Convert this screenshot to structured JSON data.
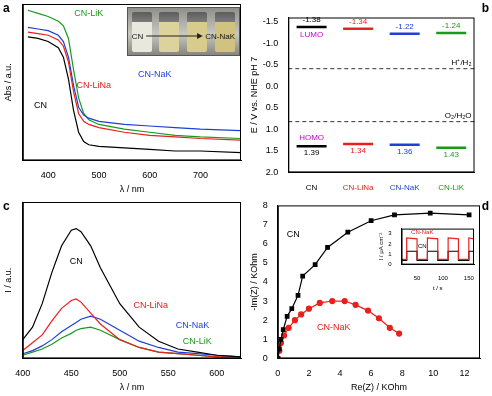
{
  "chart_data": [
    {
      "type": "line",
      "panel": "a",
      "x_label": "λ / nm",
      "y_label": "Abs / a.u.",
      "xlim": [
        350,
        780
      ],
      "xticks": [
        400,
        500,
        600,
        700
      ],
      "ylim": [
        0,
        100
      ],
      "tick_labels": "x",
      "x": [
        360,
        380,
        400,
        420,
        430,
        440,
        450,
        460,
        470,
        480,
        500,
        550,
        600,
        650,
        700,
        780
      ],
      "series": [
        {
          "name": "CN",
          "color": "#000000",
          "values": [
            79,
            78,
            76,
            72,
            66,
            52,
            32,
            18,
            12,
            10,
            9,
            8,
            7,
            6,
            6,
            5
          ]
        },
        {
          "name": "CN-LiNa",
          "color": "#e8201e",
          "values": [
            82,
            81,
            80,
            77,
            73,
            63,
            44,
            30,
            25,
            23,
            21,
            18,
            16,
            15,
            14,
            13
          ]
        },
        {
          "name": "CN-NaK",
          "color": "#1f3fd6",
          "values": [
            85,
            84,
            83,
            80,
            76,
            66,
            48,
            34,
            29,
            27,
            25,
            23,
            22,
            21,
            20,
            19
          ]
        },
        {
          "name": "CN-LiK",
          "color": "#1a9a1a",
          "values": [
            96,
            94,
            92,
            89,
            86,
            78,
            58,
            40,
            30,
            26,
            23,
            20,
            18,
            16,
            15,
            14
          ]
        }
      ],
      "inset_photo": {
        "labels": [
          "CN",
          "CN-NaK"
        ]
      }
    },
    {
      "type": "energy_levels",
      "panel": "b",
      "y_label": "E / V vs. NHE pH 7",
      "categories": [
        "CN",
        "CN-LiNa",
        "CN-NaK",
        "CN-LiK"
      ],
      "colors": [
        "#000000",
        "#e8201e",
        "#1f3fd6",
        "#1a9a1a"
      ],
      "ylim": [
        2.0,
        -1.6
      ],
      "yticks": [
        -1.5,
        {
          "value": -1,
          "label": "-1.0"
        },
        -0.5,
        {
          "value": 0,
          "label": "0.0"
        },
        0.5,
        {
          "value": 1,
          "label": "1.0"
        },
        1.5,
        {
          "value": 2,
          "label": "2.0"
        }
      ],
      "series": [
        {
          "name": "LUMO",
          "color": "#cc00cc",
          "values": [
            -1.38,
            -1.34,
            -1.22,
            -1.24
          ]
        },
        {
          "name": "HOMO",
          "color": "#cc00cc",
          "values": [
            1.39,
            1.34,
            1.36,
            1.43
          ]
        }
      ],
      "reference_lines": [
        {
          "label": "H⁺/H₂",
          "value": -0.41
        },
        {
          "label": "O₂/H₂O",
          "value": 0.82
        }
      ],
      "data_labels": true
    },
    {
      "type": "line",
      "panel": "c",
      "x_label": "λ / nm",
      "y_label": "I / a.u.",
      "xlim": [
        400,
        625
      ],
      "xticks": [
        400,
        450,
        500,
        550,
        600
      ],
      "ylim": [
        0,
        100
      ],
      "tick_labels": "x",
      "x": [
        400,
        410,
        420,
        430,
        440,
        450,
        455,
        460,
        470,
        480,
        500,
        520,
        540,
        560,
        580,
        600,
        625
      ],
      "series": [
        {
          "name": "CN",
          "color": "#000000",
          "values": [
            12,
            20,
            35,
            55,
            72,
            82,
            83,
            81,
            72,
            58,
            35,
            20,
            11,
            6,
            4,
            2,
            1
          ]
        },
        {
          "name": "CN-LiNa",
          "color": "#e8201e",
          "values": [
            5,
            10,
            15,
            24,
            32,
            37,
            38,
            36,
            29,
            22,
            12,
            7,
            4,
            3,
            2,
            1,
            1
          ]
        },
        {
          "name": "CN-NaK",
          "color": "#1f3fd6",
          "values": [
            3,
            5,
            8,
            12,
            17,
            21,
            23,
            25,
            27,
            25,
            18,
            11,
            7,
            4,
            3,
            2,
            1
          ]
        },
        {
          "name": "CN-LiK",
          "color": "#1a9a1a",
          "values": [
            2,
            4,
            6,
            9,
            13,
            16,
            18,
            19,
            20,
            18,
            12,
            7,
            4,
            3,
            2,
            1,
            1
          ]
        }
      ]
    },
    {
      "type": "scatter",
      "panel": "d",
      "x_label": "Re(Z) / KOhm",
      "y_label": "-Im(Z) / KOhm",
      "xlim": [
        0,
        13
      ],
      "xticks": [
        0,
        2,
        4,
        6,
        8,
        10,
        12
      ],
      "ylim": [
        0,
        8
      ],
      "yticks": [
        0,
        1,
        2,
        3,
        4,
        5,
        6,
        7,
        8
      ],
      "series": [
        {
          "name": "CN",
          "color": "#000000",
          "marker": "square",
          "line_style": "solid",
          "x": [
            0,
            0.1,
            0.2,
            0.35,
            0.6,
            0.9,
            1.3,
            1.6,
            2.4,
            3.2,
            4.5,
            6.0,
            7.5,
            9.8,
            12.3
          ],
          "values": [
            0,
            0.5,
            1.0,
            1.5,
            2.2,
            2.6,
            3.3,
            4.3,
            4.9,
            5.8,
            6.6,
            7.2,
            7.5,
            7.6,
            7.5
          ]
        },
        {
          "name": "CN-NaK",
          "color": "#e8201e",
          "marker": "circle",
          "line_style": "solid",
          "x": [
            0,
            0.1,
            0.2,
            0.4,
            0.7,
            1.1,
            1.5,
            2.0,
            2.7,
            3.5,
            4.3,
            5.0,
            5.8,
            6.5,
            7.2,
            7.8
          ],
          "values": [
            0,
            0.4,
            0.8,
            1.2,
            1.6,
            2.0,
            2.3,
            2.6,
            2.9,
            3.0,
            3.0,
            2.8,
            2.5,
            2.1,
            1.6,
            1.3
          ]
        }
      ],
      "inset": {
        "type": "line",
        "x_label": "t / s",
        "y_label": "I / μA cm⁻²",
        "xlim": [
          20,
          160
        ],
        "xticks": [
          50,
          100,
          150
        ],
        "ylim": [
          0,
          3.5
        ],
        "yticks": [
          0,
          1,
          2,
          3
        ],
        "x": [
          20,
          30,
          30,
          50,
          50,
          70,
          70,
          90,
          90,
          110,
          110,
          130,
          130,
          150,
          150,
          160
        ],
        "series": [
          {
            "name": "CN-NaK",
            "color": "#e8201e",
            "values": [
              0.5,
              0.5,
              2.6,
              2.5,
              0.5,
              0.5,
              2.6,
              2.5,
              0.5,
              0.5,
              2.6,
              2.5,
              0.5,
              0.5,
              2.6,
              2.5
            ]
          },
          {
            "name": "CN",
            "color": "#000000",
            "values": [
              0.4,
              0.4,
              1.3,
              1.3,
              0.4,
              0.4,
              1.3,
              1.3,
              0.4,
              0.4,
              1.3,
              1.3,
              0.4,
              0.4,
              1.3,
              1.3
            ]
          }
        ]
      }
    }
  ]
}
